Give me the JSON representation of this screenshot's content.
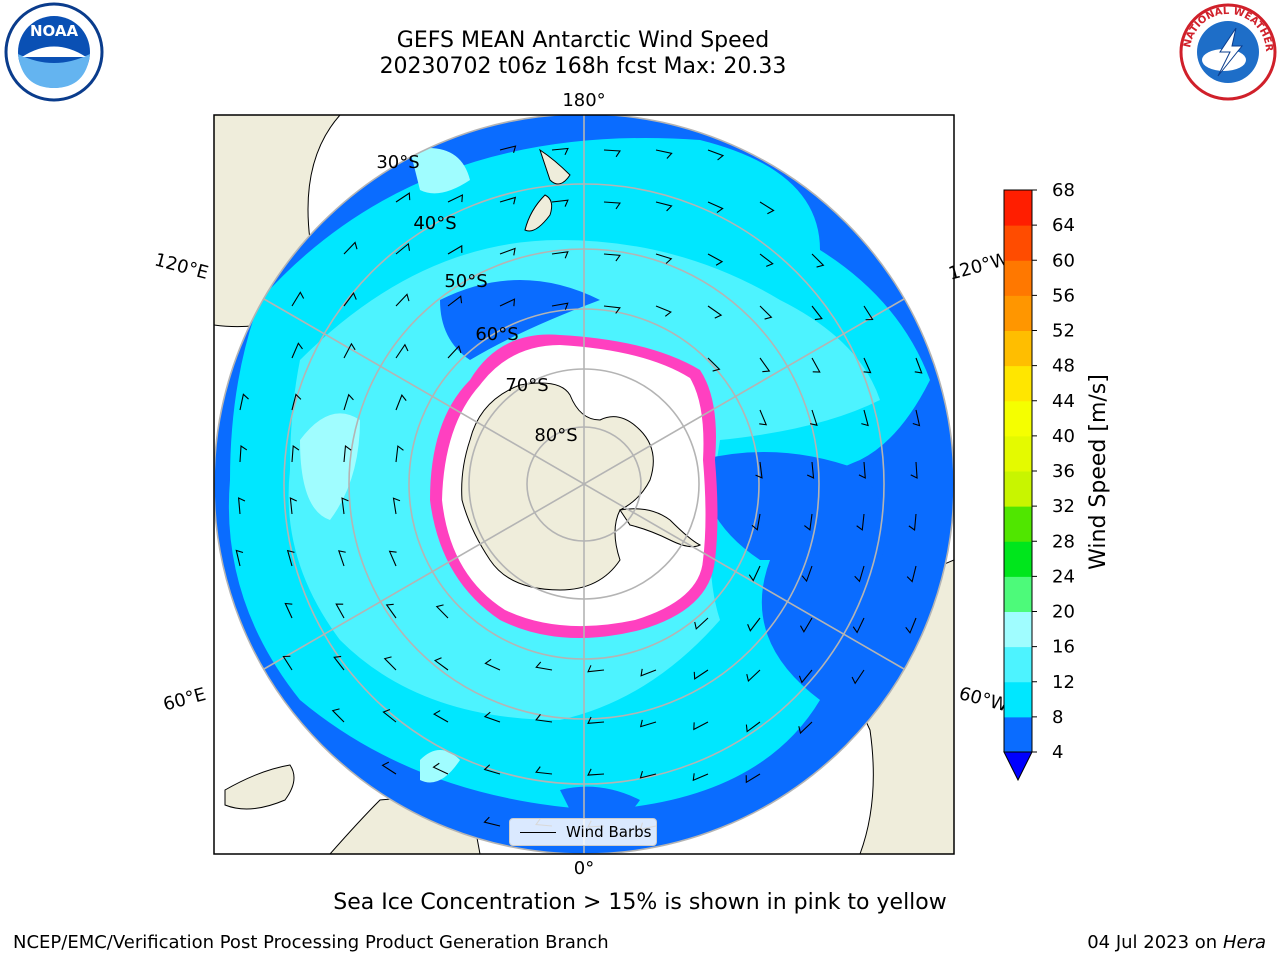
{
  "title_line1": "GEFS MEAN Antarctic Wind Speed",
  "title_line2": "20230702 t06z 168h fcst   Max: 20.33",
  "caption": "Sea Ice Concentration > 15% is shown in pink to yellow",
  "footer_left": "NCEP/EMC/Verification Post Processing Product Generation Branch",
  "footer_right_date": "04 Jul 2023 on",
  "footer_right_host": "Hera",
  "legend_label": "Wind Barbs",
  "logos": {
    "left": "noaa-logo",
    "right": "national-weather-service-logo"
  },
  "map": {
    "projection": "south-polar-stereographic",
    "longitude_labels": {
      "top": "180°",
      "bottom": "0°",
      "upper_left": "120°E",
      "upper_right": "120°W",
      "lower_left": "60°E",
      "lower_right": "60°W"
    },
    "latitude_labels": [
      "30°S",
      "40°S",
      "50°S",
      "60°S",
      "70°S",
      "80°S"
    ]
  },
  "colorbar": {
    "label": "Wind Speed [m/s]",
    "ticks": [
      "4",
      "8",
      "12",
      "16",
      "20",
      "24",
      "28",
      "32",
      "36",
      "40",
      "44",
      "48",
      "52",
      "56",
      "60",
      "64",
      "68"
    ],
    "colors": [
      "#0a6cff",
      "#00e7ff",
      "#4df3ff",
      "#a0fdff",
      "#4dfa7a",
      "#00e61c",
      "#50e600",
      "#c8f500",
      "#e4fa00",
      "#f5ff00",
      "#ffe600",
      "#ffbe00",
      "#ff9600",
      "#ff7800",
      "#ff4c00",
      "#ff1e00"
    ],
    "under_color": "#0000ff"
  },
  "colors": {
    "land": "#efeddb",
    "ice": "#ffffff",
    "ice_edge": "#ff40c0",
    "grid": "#b4b4b4"
  }
}
